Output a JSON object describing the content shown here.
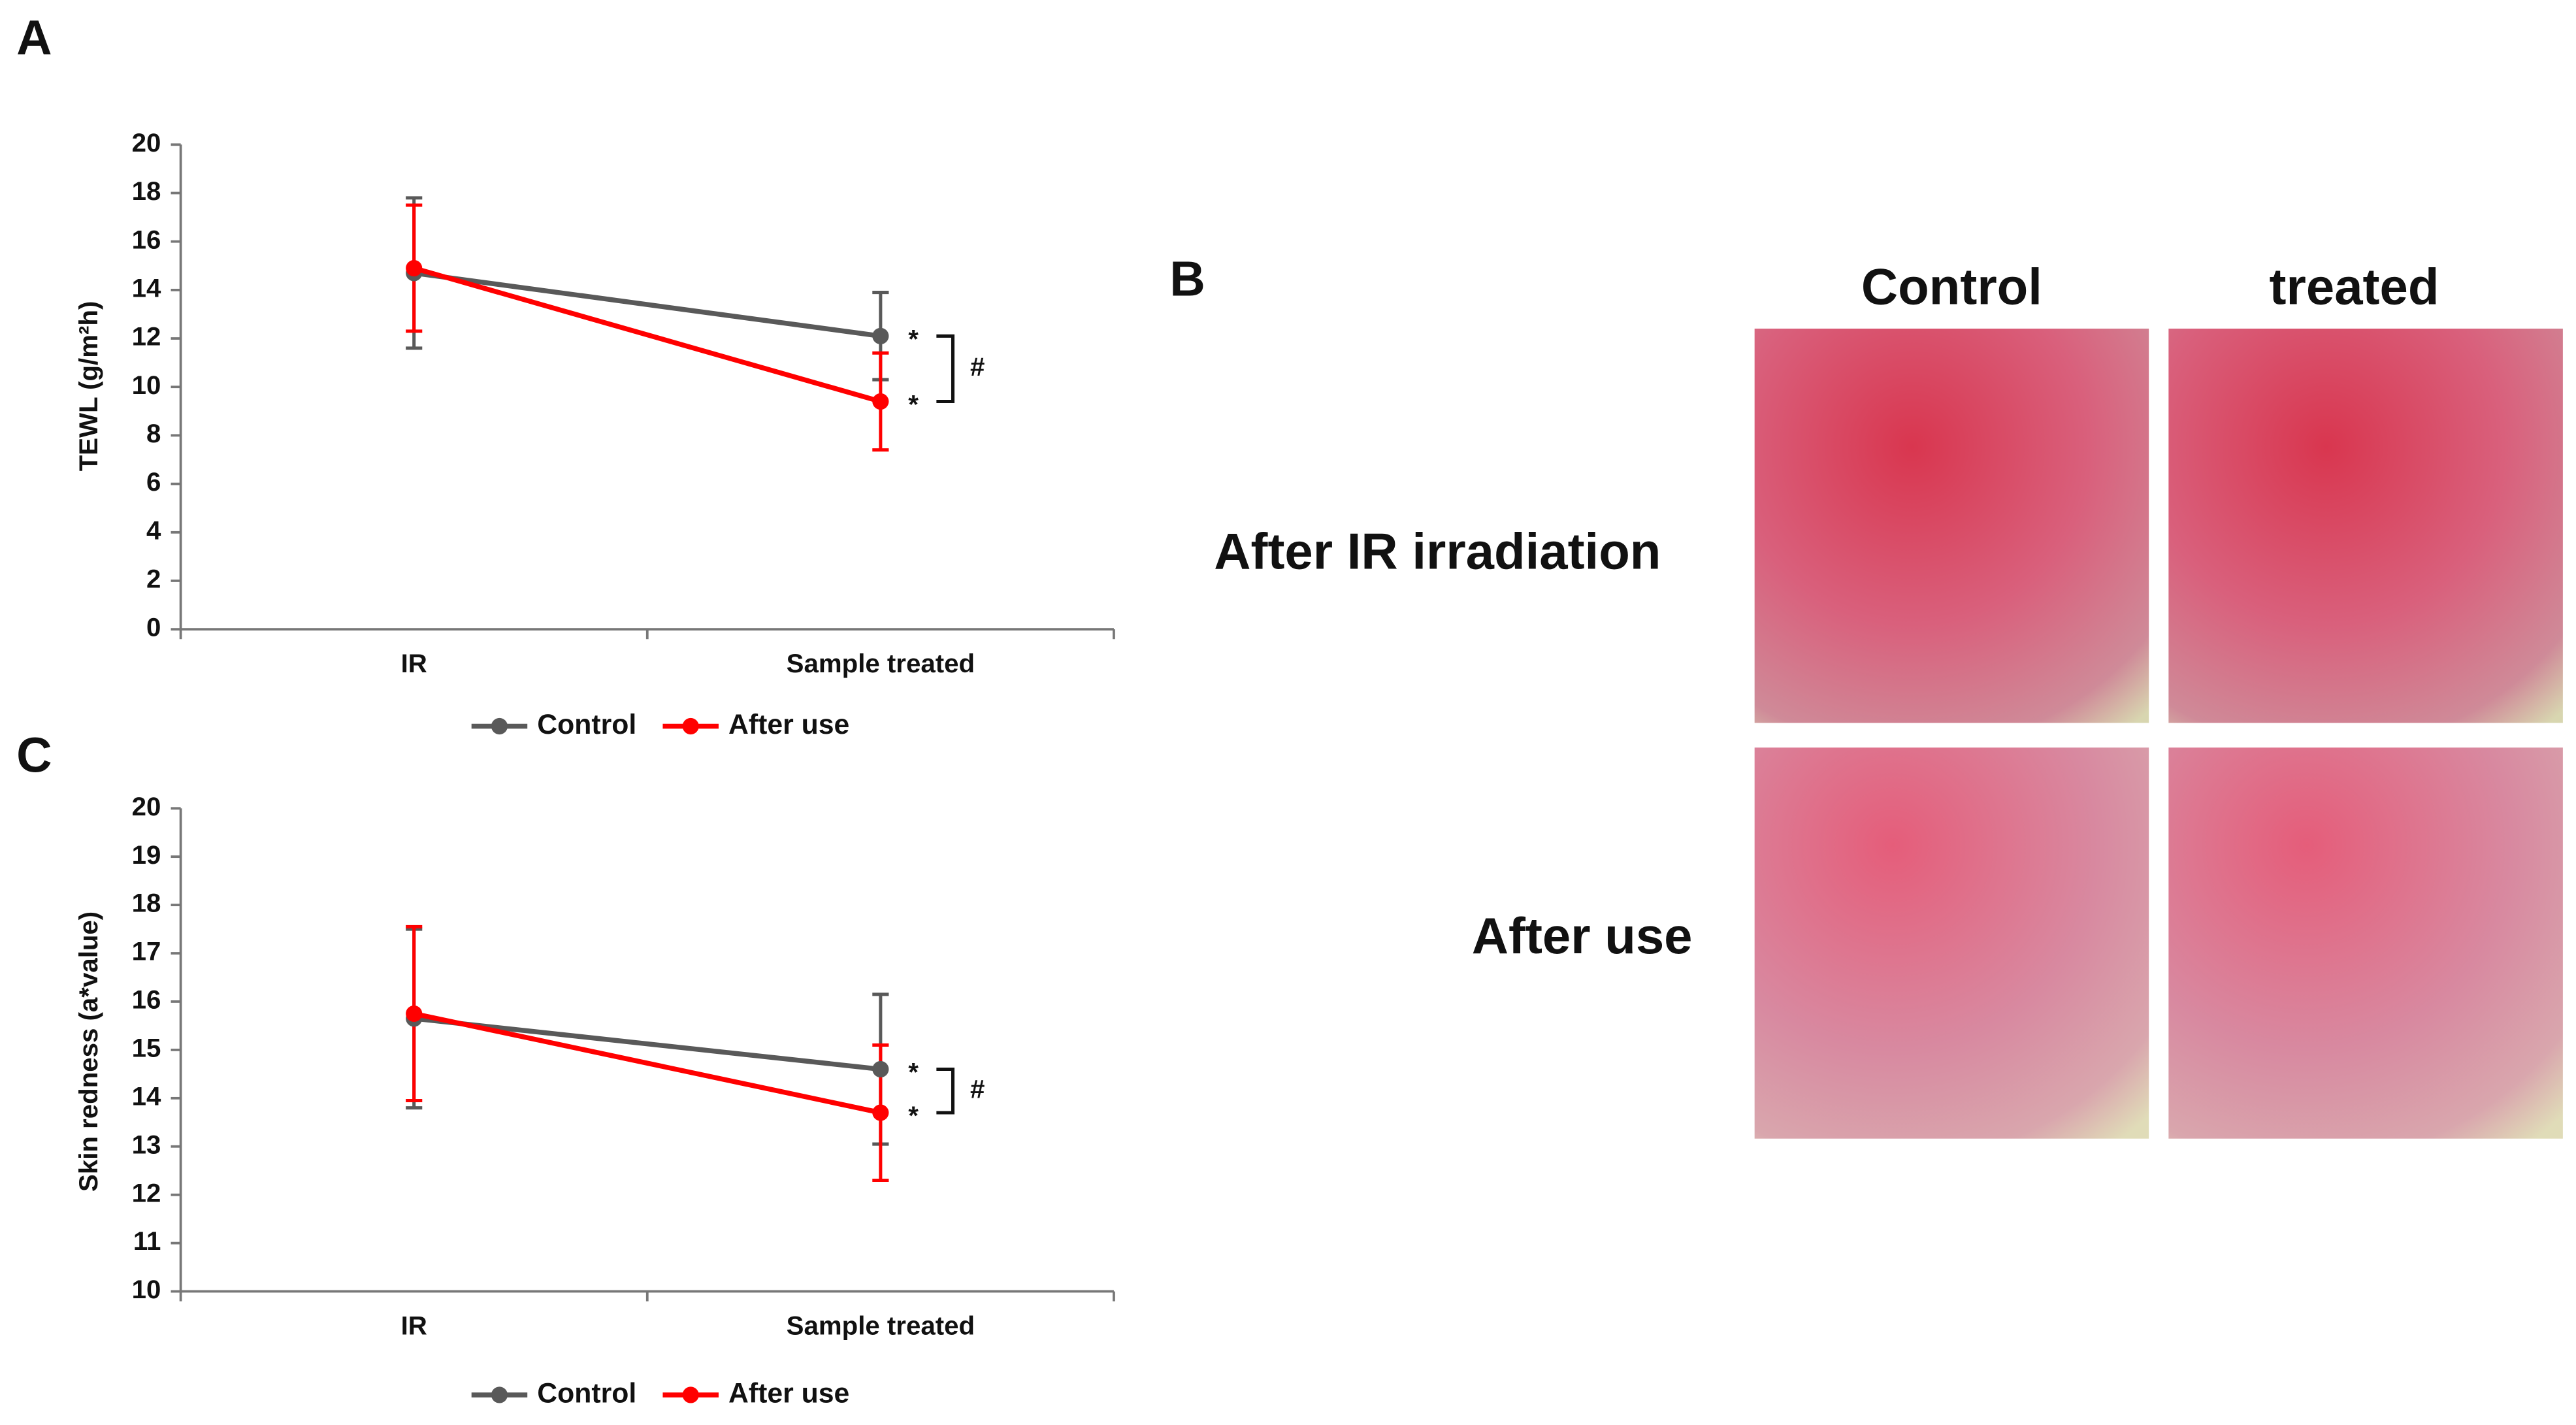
{
  "chart_data": [
    {
      "type": "line",
      "panel_label": "A",
      "y_label": "TEWL (g/m²h)",
      "categories": [
        "IR",
        "Sample treated"
      ],
      "series": [
        {
          "name": "Control",
          "color": "#595959",
          "values": [
            14.7,
            12.1
          ],
          "errors": [
            3.1,
            1.8
          ]
        },
        {
          "name": "After use",
          "color": "#ff0000",
          "values": [
            14.9,
            9.4
          ],
          "errors": [
            2.6,
            2.0
          ]
        }
      ],
      "ylim": [
        0,
        20
      ],
      "yticks": [
        0,
        2,
        4,
        6,
        8,
        10,
        12,
        14,
        16,
        18,
        20
      ],
      "annotations": [
        "*",
        "*",
        "#"
      ],
      "legend": "bottom"
    },
    {
      "type": "line",
      "panel_label": "C",
      "y_label": "Skin redness (a*value)",
      "categories": [
        "IR",
        "Sample treated"
      ],
      "series": [
        {
          "name": "Control",
          "color": "#595959",
          "values": [
            15.65,
            14.6
          ],
          "errors": [
            1.85,
            1.55
          ]
        },
        {
          "name": "After use",
          "color": "#ff0000",
          "values": [
            15.75,
            13.7
          ],
          "errors": [
            1.8,
            1.4
          ]
        }
      ],
      "ylim": [
        10,
        20
      ],
      "yticks": [
        10,
        11,
        12,
        13,
        14,
        15,
        16,
        17,
        18,
        19,
        20
      ],
      "annotations": [
        "*",
        "*",
        "#"
      ],
      "legend": "bottom"
    }
  ],
  "panel_b": {
    "label": "B",
    "columns": [
      "Control",
      "treated"
    ],
    "rows": [
      "After IR irradiation",
      "After use"
    ]
  }
}
